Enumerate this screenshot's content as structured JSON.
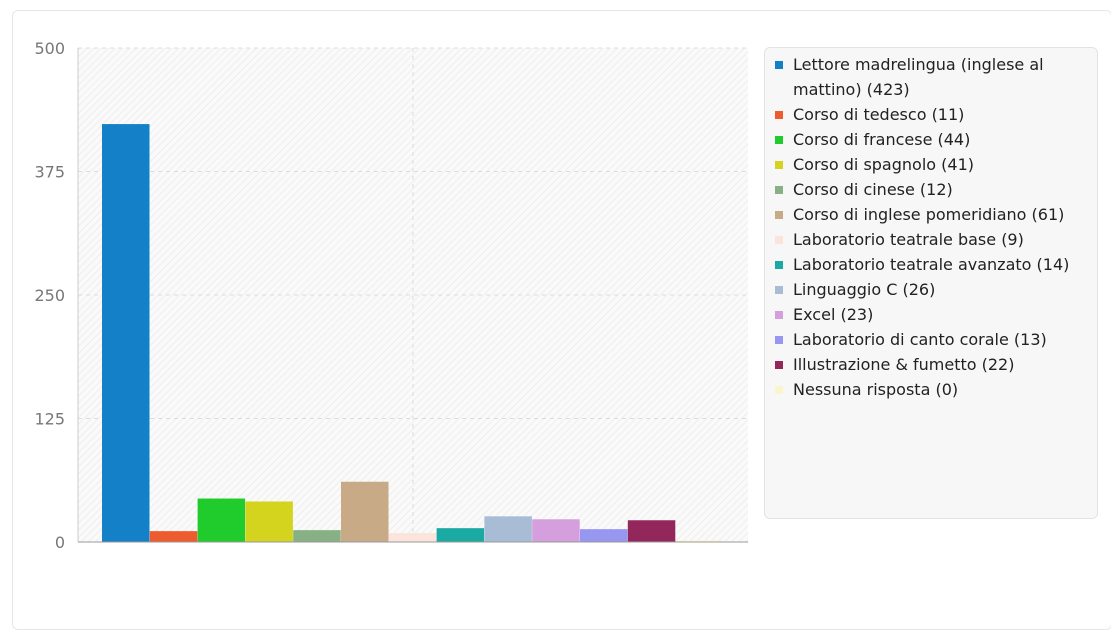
{
  "chart_data": {
    "type": "bar",
    "ylim": [
      0,
      500
    ],
    "yticks": [
      "0",
      "125",
      "250",
      "375",
      "500"
    ],
    "grid": true,
    "legend_position": "right",
    "series": [
      {
        "name": "Lettore madrelingua (inglese al mattino) (423)",
        "value": 423,
        "color": "#1380c8"
      },
      {
        "name": "Corso di tedesco (11)",
        "value": 11,
        "color": "#ee5b2e"
      },
      {
        "name": "Corso di francese (44)",
        "value": 44,
        "color": "#20cc2b"
      },
      {
        "name": "Corso di spagnolo (41)",
        "value": 41,
        "color": "#d4d41f"
      },
      {
        "name": "Corso di cinese (12)",
        "value": 12,
        "color": "#87b084"
      },
      {
        "name": "Corso di inglese pomeridiano (61)",
        "value": 61,
        "color": "#c8ab86"
      },
      {
        "name": "Laboratorio teatrale base (9)",
        "value": 9,
        "color": "#fbe4dc"
      },
      {
        "name": "Laboratorio teatrale avanzato (14)",
        "value": 14,
        "color": "#1ba9a4"
      },
      {
        "name": "Linguaggio C (26)",
        "value": 26,
        "color": "#a9bcd6"
      },
      {
        "name": "Excel (23)",
        "value": 23,
        "color": "#d49fdc"
      },
      {
        "name": "Laboratorio di canto corale (13)",
        "value": 13,
        "color": "#9797f2"
      },
      {
        "name": "Illustrazione & fumetto (22)",
        "value": 22,
        "color": "#93265b"
      },
      {
        "name": "Nessuna risposta (0)",
        "value": 0,
        "color": "#fbf5cd"
      }
    ]
  }
}
